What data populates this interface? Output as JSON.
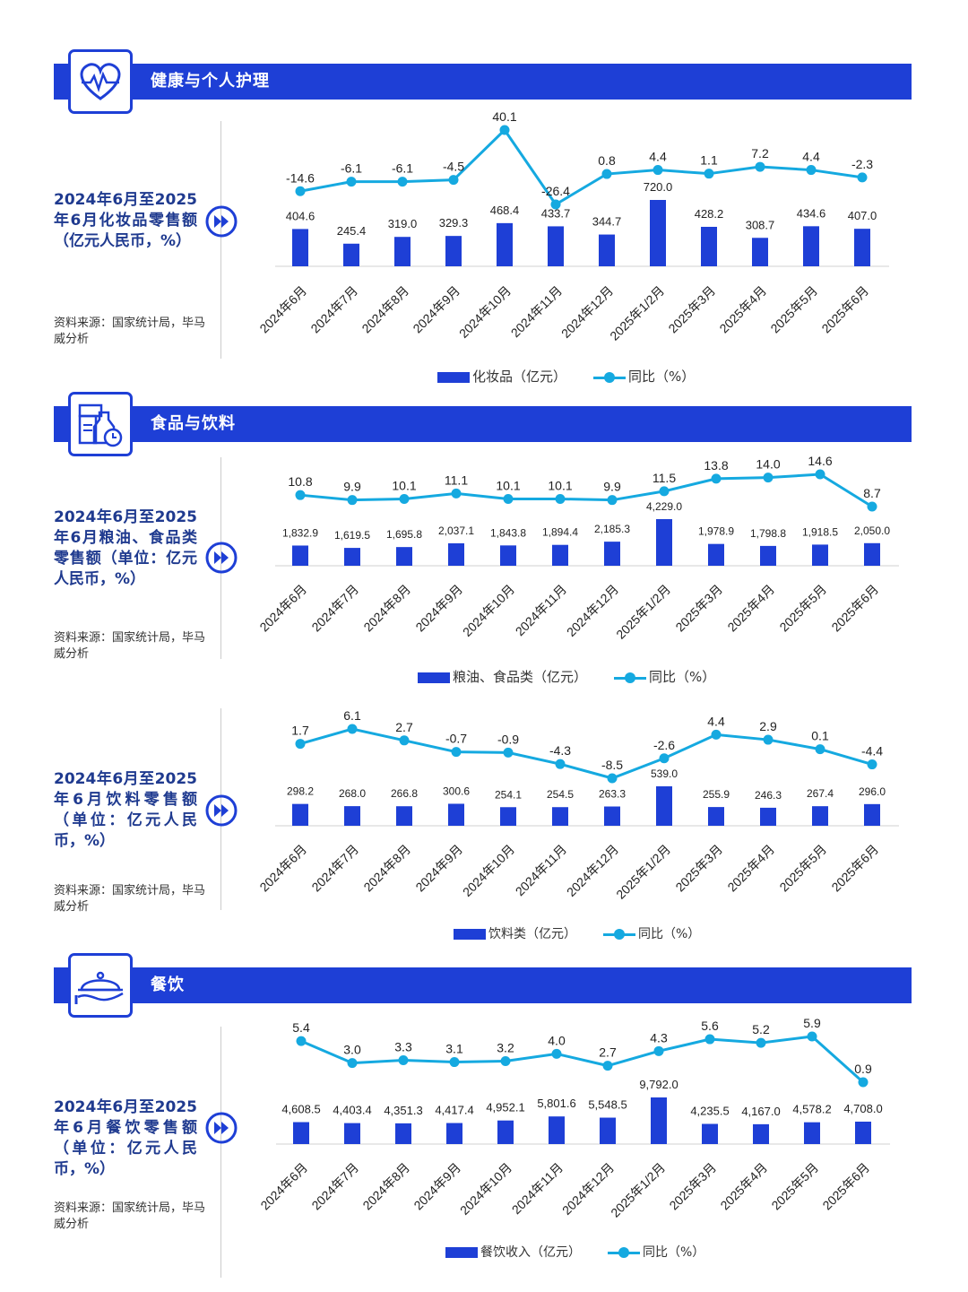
{
  "months": [
    "2024年6月",
    "2024年7月",
    "2024年8月",
    "2024年9月",
    "2024年10月",
    "2024年11月",
    "2024年12月",
    "2025年1/2月",
    "2025年3月",
    "2025年4月",
    "2025年5月",
    "2025年6月"
  ],
  "sections": {
    "health": {
      "title": "健康与个人护理",
      "icon": "heart-pulse-icon"
    },
    "food": {
      "title": "食品与饮料",
      "icon": "grocery-icon"
    },
    "catering": {
      "title": "餐饮",
      "icon": "cloche-icon"
    }
  },
  "panels": {
    "cosmetics": {
      "desc": "2024年6月至2025年6月化妆品零售额（亿元人民币，%）",
      "source": "资料来源：国家统计局，毕马威分析"
    },
    "grain": {
      "desc": "2024年6月至2025年6月粮油、食品类零售额（单位：亿元人民币，%）",
      "source": "资料来源：国家统计局，毕马威分析"
    },
    "beverage": {
      "desc": "2024年6月至2025年6月饮料零售额（单位：亿元人民币，%）",
      "source": "资料来源：国家统计局，毕马威分析"
    },
    "catering": {
      "desc": "2024年6月至2025年6月餐饮零售额（单位：亿元人民币，%）",
      "source": "资料来源：国家统计局，毕马威分析"
    }
  },
  "chart_data": [
    {
      "type": "bar",
      "categories": [
        "2024年6月",
        "2024年7月",
        "2024年8月",
        "2024年9月",
        "2024年10月",
        "2024年11月",
        "2024年12月",
        "2025年1/2月",
        "2025年3月",
        "2025年4月",
        "2025年5月",
        "2025年6月"
      ],
      "series": [
        {
          "name": "化妆品（亿元）",
          "type": "bar",
          "values": [
            404.6,
            245.4,
            319.0,
            329.3,
            468.4,
            433.7,
            344.7,
            720.0,
            428.2,
            308.7,
            434.6,
            407.0
          ],
          "labels": [
            "404.6",
            "245.4",
            "319.0",
            "329.3",
            "468.4",
            "433.7",
            "344.7",
            "720.0",
            "428.2",
            "308.7",
            "434.6",
            "407.0"
          ]
        },
        {
          "name": "同比（%）",
          "type": "line",
          "values": [
            -14.6,
            -6.1,
            -6.1,
            -4.5,
            40.1,
            -26.4,
            0.8,
            4.4,
            1.1,
            7.2,
            4.4,
            -2.3
          ],
          "labels": [
            "-14.6",
            "-6.1",
            "-6.1",
            "-4.5",
            "40.1",
            "-26.4",
            "0.8",
            "4.4",
            "1.1",
            "7.2",
            "4.4",
            "-2.3"
          ]
        }
      ],
      "legend_position": "bottom",
      "grid": false
    },
    {
      "type": "bar",
      "categories": [
        "2024年6月",
        "2024年7月",
        "2024年8月",
        "2024年9月",
        "2024年10月",
        "2024年11月",
        "2024年12月",
        "2025年1/2月",
        "2025年3月",
        "2025年4月",
        "2025年5月",
        "2025年6月"
      ],
      "series": [
        {
          "name": "粮油、食品类（亿元）",
          "type": "bar",
          "values": [
            1832.9,
            1619.5,
            1695.8,
            2037.1,
            1843.8,
            1894.4,
            2185.3,
            4229.0,
            1978.9,
            1798.8,
            1918.5,
            2050.0
          ],
          "labels": [
            "1,832.9",
            "1,619.5",
            "1,695.8",
            "2,037.1",
            "1,843.8",
            "1,894.4",
            "2,185.3",
            "4,229.0",
            "1,978.9",
            "1,798.8",
            "1,918.5",
            "2,050.0"
          ]
        },
        {
          "name": "同比（%）",
          "type": "line",
          "values": [
            10.8,
            9.9,
            10.1,
            11.1,
            10.1,
            10.1,
            9.9,
            11.5,
            13.8,
            14.0,
            14.6,
            8.7
          ],
          "labels": [
            "10.8",
            "9.9",
            "10.1",
            "11.1",
            "10.1",
            "10.1",
            "9.9",
            "11.5",
            "13.8",
            "14.0",
            "14.6",
            "8.7"
          ]
        }
      ],
      "legend_position": "bottom",
      "grid": false
    },
    {
      "type": "bar",
      "categories": [
        "2024年6月",
        "2024年7月",
        "2024年8月",
        "2024年9月",
        "2024年10月",
        "2024年11月",
        "2024年12月",
        "2025年1/2月",
        "2025年3月",
        "2025年4月",
        "2025年5月",
        "2025年6月"
      ],
      "series": [
        {
          "name": "饮料类（亿元）",
          "type": "bar",
          "values": [
            298.2,
            268.0,
            266.8,
            300.6,
            254.1,
            254.5,
            263.3,
            539.0,
            255.9,
            246.3,
            267.4,
            296.0
          ],
          "labels": [
            "298.2",
            "268.0",
            "266.8",
            "300.6",
            "254.1",
            "254.5",
            "263.3",
            "539.0",
            "255.9",
            "246.3",
            "267.4",
            "296.0"
          ]
        },
        {
          "name": "同比（%）",
          "type": "line",
          "values": [
            1.7,
            6.1,
            2.7,
            -0.7,
            -0.9,
            -4.3,
            -8.5,
            -2.6,
            4.4,
            2.9,
            0.1,
            -4.4
          ],
          "labels": [
            "1.7",
            "6.1",
            "2.7",
            "-0.7",
            "-0.9",
            "-4.3",
            "-8.5",
            "-2.6",
            "4.4",
            "2.9",
            "0.1",
            "-4.4"
          ]
        }
      ],
      "legend_position": "bottom",
      "grid": false
    },
    {
      "type": "bar",
      "categories": [
        "2024年6月",
        "2024年7月",
        "2024年8月",
        "2024年9月",
        "2024年10月",
        "2024年11月",
        "2024年12月",
        "2025年1/2月",
        "2025年3月",
        "2025年4月",
        "2025年5月",
        "2025年6月"
      ],
      "series": [
        {
          "name": "餐饮收入（亿元）",
          "type": "bar",
          "values": [
            4608.5,
            4403.4,
            4351.3,
            4417.4,
            4952.1,
            5801.6,
            5548.5,
            9792.0,
            4235.5,
            4167.0,
            4578.2,
            4708.0
          ],
          "labels": [
            "4,608.5",
            "4,403.4",
            "4,351.3",
            "4,417.4",
            "4,952.1",
            "5,801.6",
            "5,548.5",
            "9,792.0",
            "4,235.5",
            "4,167.0",
            "4,578.2",
            "4,708.0"
          ]
        },
        {
          "name": "同比（%）",
          "type": "line",
          "values": [
            5.4,
            3.0,
            3.3,
            3.1,
            3.2,
            4.0,
            2.7,
            4.3,
            5.6,
            5.2,
            5.9,
            0.9
          ],
          "labels": [
            "5.4",
            "3.0",
            "3.3",
            "3.1",
            "3.2",
            "4.0",
            "2.7",
            "4.3",
            "5.6",
            "5.2",
            "5.9",
            "0.9"
          ]
        }
      ],
      "legend_position": "bottom",
      "grid": false
    }
  ],
  "colors": {
    "banner": "#1e3fd6",
    "bar": "#1e3fd6",
    "line": "#15a9e0",
    "text": "#1f3a8f"
  }
}
